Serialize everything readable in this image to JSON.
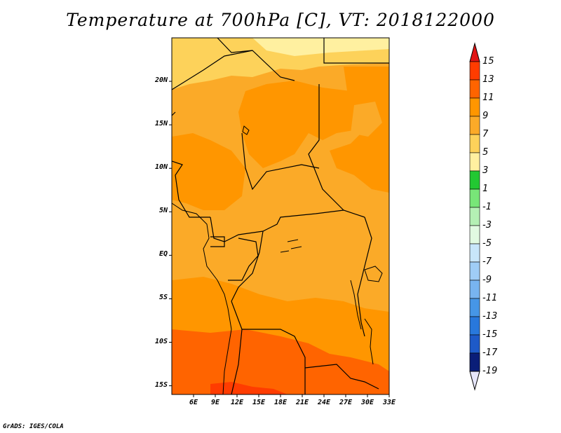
{
  "title": "Temperature at 700hPa [C], VT: 2018122000",
  "footer": "GrADS: IGES/COLA",
  "map": {
    "lon_range": [
      3,
      33
    ],
    "lat_range": [
      -16,
      25
    ],
    "x_ticks": [
      {
        "lon": 6,
        "label": "6E"
      },
      {
        "lon": 9,
        "label": "9E"
      },
      {
        "lon": 12,
        "label": "12E"
      },
      {
        "lon": 15,
        "label": "15E"
      },
      {
        "lon": 18,
        "label": "18E"
      },
      {
        "lon": 21,
        "label": "21E"
      },
      {
        "lon": 24,
        "label": "24E"
      },
      {
        "lon": 27,
        "label": "27E"
      },
      {
        "lon": 30,
        "label": "30E"
      },
      {
        "lon": 33,
        "label": "33E"
      }
    ],
    "y_ticks": [
      {
        "lat": 20,
        "label": "20N"
      },
      {
        "lat": 15,
        "label": "15N"
      },
      {
        "lat": 10,
        "label": "10N"
      },
      {
        "lat": 5,
        "label": "5N"
      },
      {
        "lat": 0,
        "label": "EQ"
      },
      {
        "lat": -5,
        "label": "5S"
      },
      {
        "lat": -10,
        "label": "10S"
      },
      {
        "lat": -15,
        "label": "15S"
      }
    ]
  },
  "colorbar": {
    "labels": [
      "15",
      "13",
      "11",
      "9",
      "7",
      "5",
      "3",
      "1",
      "-1",
      "-3",
      "-5",
      "-7",
      "-9",
      "-11",
      "-13",
      "-15",
      "-17",
      "-19"
    ],
    "colors": [
      "#ff3c00",
      "#ff6400",
      "#ff9600",
      "#fbaa28",
      "#fdd25a",
      "#fff0a0",
      "#22c832",
      "#78e678",
      "#b4f0b4",
      "#e1fae1",
      "#c8e6fa",
      "#9fcdf6",
      "#78b4f0",
      "#4696e6",
      "#2878dc",
      "#1e5ac8",
      "#1040aa",
      "#0a1e78"
    ],
    "top_arrow_color": "#e11414",
    "bottom_arrow_color": "#e6e6fa"
  }
}
